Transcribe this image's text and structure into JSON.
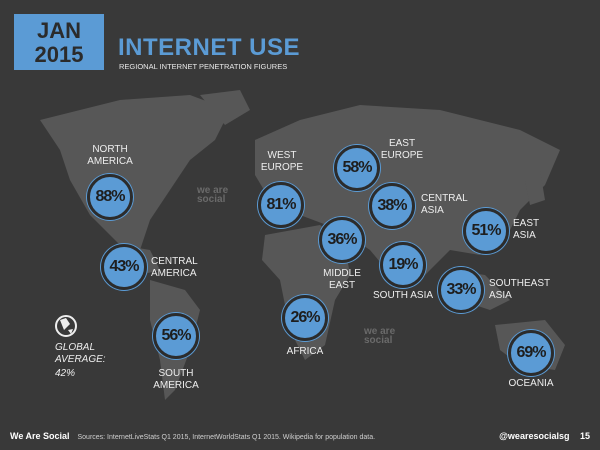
{
  "header": {
    "badge": [
      "JAN",
      "2015"
    ],
    "title": "INTERNET USE",
    "subtitle": "REGIONAL INTERNET PENETRATION FIGURES"
  },
  "regions": [
    {
      "name": "NORTH AMERICA",
      "value": "88%"
    },
    {
      "name": "WEST EUROPE",
      "value": "81%"
    },
    {
      "name": "EAST EUROPE",
      "value": "58%"
    },
    {
      "name": "CENTRAL ASIA",
      "value": "38%"
    },
    {
      "name": "MIDDLE EAST",
      "value": "36%"
    },
    {
      "name": "SOUTH ASIA",
      "value": "19%"
    },
    {
      "name": "EAST ASIA",
      "value": "51%"
    },
    {
      "name": "SOUTHEAST ASIA",
      "value": "33%"
    },
    {
      "name": "CENTRAL AMERICA",
      "value": "43%"
    },
    {
      "name": "SOUTH AMERICA",
      "value": "56%"
    },
    {
      "name": "AFRICA",
      "value": "26%"
    },
    {
      "name": "OCEANIA",
      "value": "69%"
    }
  ],
  "global": {
    "label": "GLOBAL AVERAGE:",
    "value": "42%"
  },
  "watermark": "we are social",
  "footer": {
    "brand": "We Are Social",
    "sources": "Sources: InternetLiveStats Q1 2015, InternetWorldStats Q1 2015. Wikipedia for population data.",
    "handle": "@wearesocialsg",
    "page": "15"
  }
}
